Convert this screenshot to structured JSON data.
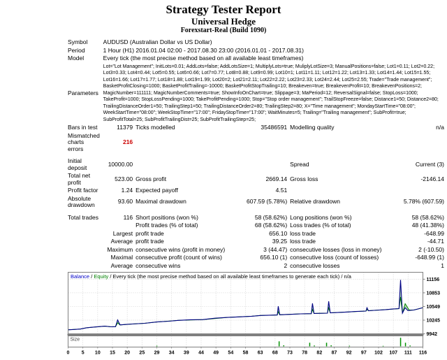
{
  "report": {
    "title": "Strategy Tester Report",
    "ea_name": "Universal Hedge",
    "account": "Forexstart-Real (Build 1090)"
  },
  "table": {
    "top_rows": [
      {
        "label": "Symbol",
        "value": "AUDUSD (Australian Dollar vs US Dollar)"
      },
      {
        "label": "Period",
        "value": "1 Hour (H1) 2016.01.04 02:00 - 2017.08.30 23:00 (2016.01.01 - 2017.08.31)"
      },
      {
        "label": "Model",
        "value": "Every tick (the most precise method based on all available least timeframes)"
      },
      {
        "label": "Parameters",
        "params": true,
        "value": "Lot=\"Lot Management\"; InitLots=0.01; AddLots=false; AddLotsSize=1; MultiplyLots=true; MuliplyLotSize=3; ManualPositions=false; Lot1=0.11; Lot2=0.22; Lot3=0.33; Lot4=0.44; Lot5=0.55; Lot6=0.66; Lot7=0.77; Lot8=0.88; Lot9=0.99; Lot10=1; Lot11=1.11; Lot12=1.22; Lot13=1.33; Lot14=1.44; Lot15=1.55; Lot16=1.66; Lot17=1.77; Lot18=1.88; Lot19=1.99; Lot20=2; Lot21=2.11; Lot22=2.22; Lot23=2.33; Lot24=2.44; Lot25=2.55; Trade=\"Trade management\"; BasketProfitClosing=1000; BasketProfitTrailing=-10000; BasketProfitStopTrailing=10; Breakeven=true; BreakevenProfit=10; BreakevenPositions=2; MagicNumber=111111; MagicNumberComments=true; ShowInfoOnChart=true; Slippage=3; MaPeriod=12; ReversalSignal=false; StopLoss=1000; TakeProfit=1000; StopLossPending=1000; TakeProfitPending=1000; Stop=\"Stop order management\"; TrailStopFreeze=false; Distance1=50; Distance2=80; TrailingDistanceOrder1=50; TrailingStep1=50; TrailingDistanceOrder2=80; TrailingStep2=80; X=\"Time management\"; MondayStartTime=\"08:00\"; WeekStartTime=\"08:00\"; WeekStopTime=\"17:00\"; FridayStopTime=\"17:00\"; WaitMinutes=5; Trailing=\"Trailing management\"; SubProfit=true; SubProfitTotal=25; SubProfitTrailingDist=25; SubProfitTrailingStep=25;"
      }
    ],
    "stat_rows": [
      {
        "cells": [
          "Bars in test",
          "11379",
          "Ticks modelled",
          "35486591",
          "Modelling quality",
          "n/a"
        ]
      },
      {
        "cells": [
          "Mismatched charts errors",
          "216",
          "",
          "",
          "",
          ""
        ],
        "red": true
      },
      {
        "gap": true
      },
      {
        "cells": [
          "Initial deposit",
          "10000.00",
          "",
          "",
          "Spread",
          "Current (3)"
        ]
      },
      {
        "cells": [
          "Total net profit",
          "523.00",
          "Gross profit",
          "2669.14",
          "Gross loss",
          "-2146.14"
        ]
      },
      {
        "cells": [
          "Profit factor",
          "1.24",
          "Expected payoff",
          "4.51",
          "",
          ""
        ]
      },
      {
        "cells": [
          "Absolute drawdown",
          "93.60",
          "Maximal drawdown",
          "607.59 (5.78%)",
          "Relative drawdown",
          "5.78% (607.59)"
        ]
      },
      {
        "gap": true
      },
      {
        "cells": [
          "Total trades",
          "116",
          "Short positions (won %)",
          "58 (58.62%)",
          "Long positions (won %)",
          "58 (58.62%)"
        ]
      },
      {
        "cells": [
          "",
          "",
          "Profit trades (% of total)",
          "68 (58.62%)",
          "Loss trades (% of total)",
          "48 (41.38%)"
        ]
      },
      {
        "cells": [
          "",
          "Largest",
          "profit trade",
          "656.10",
          "loss trade",
          "-648.99"
        ]
      },
      {
        "cells": [
          "",
          "Average",
          "profit trade",
          "39.25",
          "loss trade",
          "-44.71"
        ]
      },
      {
        "cells": [
          "",
          "Maximum",
          "consecutive wins (profit in money)",
          "3 (44.47)",
          "consecutive losses (loss in money)",
          "2 (-10.50)"
        ]
      },
      {
        "cells": [
          "",
          "Maximal",
          "consecutive profit (count of wins)",
          "656.10 (1)",
          "consecutive loss (count of losses)",
          "-648.99 (1)"
        ]
      },
      {
        "cells": [
          "",
          "Average",
          "consecutive wins",
          "2",
          "consecutive losses",
          "1"
        ]
      }
    ]
  },
  "chart_data": {
    "type": "line",
    "legend": {
      "balance_label": "Balance",
      "sep": " / ",
      "equity_label": "Equity",
      "description": "Every tick (the most precise method based on all available least timeframes to generate each tick) / n/a"
    },
    "size_label": "Size",
    "x_ticks": [
      0,
      5,
      10,
      15,
      20,
      25,
      29,
      34,
      39,
      44,
      49,
      54,
      58,
      63,
      68,
      73,
      78,
      82,
      87,
      92,
      97,
      102,
      107,
      111,
      116
    ],
    "y_ticks": [
      11156,
      10853,
      10549,
      10245,
      9942
    ],
    "xlim": [
      0,
      116
    ],
    "ylim": [
      9942,
      11310
    ],
    "series": [
      {
        "name": "Balance",
        "color": "#000084",
        "points": [
          [
            0,
            10030
          ],
          [
            2,
            10038
          ],
          [
            4,
            10048
          ],
          [
            6,
            10075
          ],
          [
            9,
            10095
          ],
          [
            12,
            10112
          ],
          [
            14,
            10098
          ],
          [
            15.5,
            10100
          ],
          [
            16.2,
            10250
          ],
          [
            17,
            10140
          ],
          [
            19,
            10150
          ],
          [
            21,
            10160
          ],
          [
            25,
            10175
          ],
          [
            29,
            10205
          ],
          [
            33,
            10222
          ],
          [
            36,
            10240
          ],
          [
            40,
            10255
          ],
          [
            44,
            10258
          ],
          [
            48,
            10288
          ],
          [
            52,
            10305
          ],
          [
            56,
            10318
          ],
          [
            60,
            10332
          ],
          [
            63,
            10350
          ],
          [
            66,
            10355
          ],
          [
            68.4,
            10360
          ],
          [
            68.7,
            10555
          ],
          [
            69.2,
            10365
          ],
          [
            72,
            10372
          ],
          [
            76,
            10385
          ],
          [
            79.5,
            10390
          ],
          [
            79.9,
            10620
          ],
          [
            80.4,
            10395
          ],
          [
            84.8,
            10400
          ],
          [
            85.2,
            10665
          ],
          [
            85.7,
            10408
          ],
          [
            88,
            10415
          ],
          [
            91,
            10425
          ],
          [
            94,
            10438
          ],
          [
            97.4,
            10448
          ],
          [
            97.7,
            10520
          ],
          [
            98.2,
            10455
          ],
          [
            100,
            10462
          ],
          [
            102,
            10470
          ],
          [
            104,
            10480
          ],
          [
            106,
            10492
          ],
          [
            108.2,
            10502
          ],
          [
            108.7,
            11140
          ],
          [
            109.3,
            10400
          ],
          [
            110.2,
            10520
          ],
          [
            111.1,
            10458
          ],
          [
            113,
            10470
          ],
          [
            114.5,
            10495
          ],
          [
            116,
            10523
          ]
        ]
      },
      {
        "name": "Equity",
        "color": "#008000",
        "points": [
          [
            0,
            10030
          ],
          [
            4,
            10048
          ],
          [
            6,
            10075
          ],
          [
            9,
            10095
          ],
          [
            12,
            10112
          ],
          [
            14,
            10098
          ],
          [
            15.5,
            10100
          ],
          [
            16.2,
            10185
          ],
          [
            17,
            10140
          ],
          [
            21,
            10160
          ],
          [
            25,
            10175
          ],
          [
            29,
            10205
          ],
          [
            36,
            10240
          ],
          [
            44,
            10258
          ],
          [
            52,
            10305
          ],
          [
            60,
            10332
          ],
          [
            63,
            10350
          ],
          [
            68.4,
            10360
          ],
          [
            68.7,
            10430
          ],
          [
            69.2,
            10365
          ],
          [
            76,
            10385
          ],
          [
            79.5,
            10390
          ],
          [
            79.9,
            10480
          ],
          [
            80.4,
            10395
          ],
          [
            84.8,
            10400
          ],
          [
            85.2,
            10520
          ],
          [
            85.7,
            10408
          ],
          [
            91,
            10425
          ],
          [
            97.4,
            10448
          ],
          [
            97.7,
            10480
          ],
          [
            98.2,
            10455
          ],
          [
            104,
            10480
          ],
          [
            108.2,
            10502
          ],
          [
            108.7,
            10760
          ],
          [
            109.3,
            10400
          ],
          [
            110.2,
            10610
          ],
          [
            111.5,
            10470
          ],
          [
            113,
            10470
          ],
          [
            114.5,
            10495
          ],
          [
            116,
            10523
          ]
        ]
      }
    ],
    "size_bars": {
      "color": "#009000",
      "points": [
        [
          29,
          0.08
        ],
        [
          69,
          0.55
        ],
        [
          70.5,
          0.12
        ],
        [
          79,
          0.4
        ],
        [
          80.5,
          0.1
        ],
        [
          84.5,
          0.4
        ],
        [
          86,
          0.12
        ],
        [
          92,
          0.08
        ],
        [
          103,
          0.06
        ],
        [
          108.7,
          0.95
        ],
        [
          110.3,
          0.4
        ],
        [
          111.8,
          0.1
        ]
      ]
    },
    "fill_between_color": "#b6dcb6",
    "grid_color": "#c9c9c9",
    "border_color": "#808080"
  }
}
